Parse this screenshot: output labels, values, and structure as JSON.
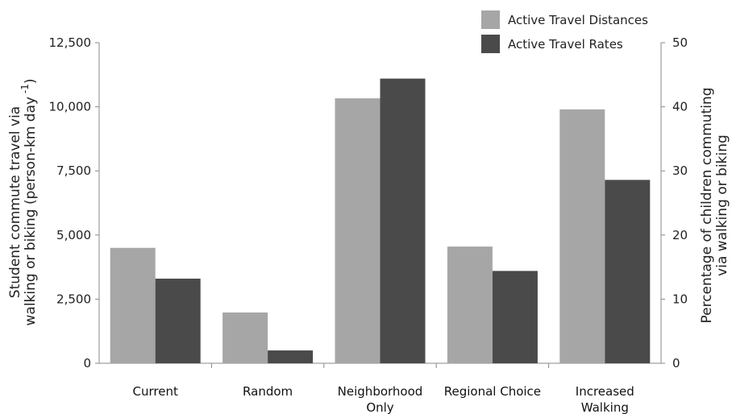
{
  "chart_data": {
    "type": "bar",
    "categories": [
      [
        "Current"
      ],
      [
        "Random"
      ],
      [
        "Neighborhood",
        "Only"
      ],
      [
        "Regional Choice"
      ],
      [
        "Increased",
        "Walking"
      ]
    ],
    "series": [
      {
        "name": "Active Travel Distances",
        "axis": "left",
        "color": "#a6a6a6",
        "values": [
          4500,
          1980,
          10330,
          4550,
          9900
        ]
      },
      {
        "name": "Active Travel Rates",
        "axis": "right",
        "color": "#4a4a4a",
        "values": [
          13.2,
          2.0,
          44.4,
          14.4,
          28.6
        ]
      }
    ],
    "left_axis": {
      "title_lines": [
        "Student commute travel via",
        "walking or biking (person-km day"
      ],
      "title_superscript": "-1",
      "title_close": ")",
      "ylim": [
        0,
        12500
      ],
      "ticks": [
        0,
        2500,
        5000,
        7500,
        10000,
        12500
      ],
      "tick_labels": [
        "0",
        "2,500",
        "5,000",
        "7,500",
        "10,000",
        "12,500"
      ]
    },
    "right_axis": {
      "title_lines": [
        "Percentage of children commuting",
        "via walking or biking"
      ],
      "ylim": [
        0,
        50
      ],
      "ticks": [
        0,
        10,
        20,
        30,
        40,
        50
      ],
      "tick_labels": [
        "0",
        "10",
        "20",
        "30",
        "40",
        "50"
      ]
    },
    "legend_position": "top-right",
    "grid": false
  }
}
